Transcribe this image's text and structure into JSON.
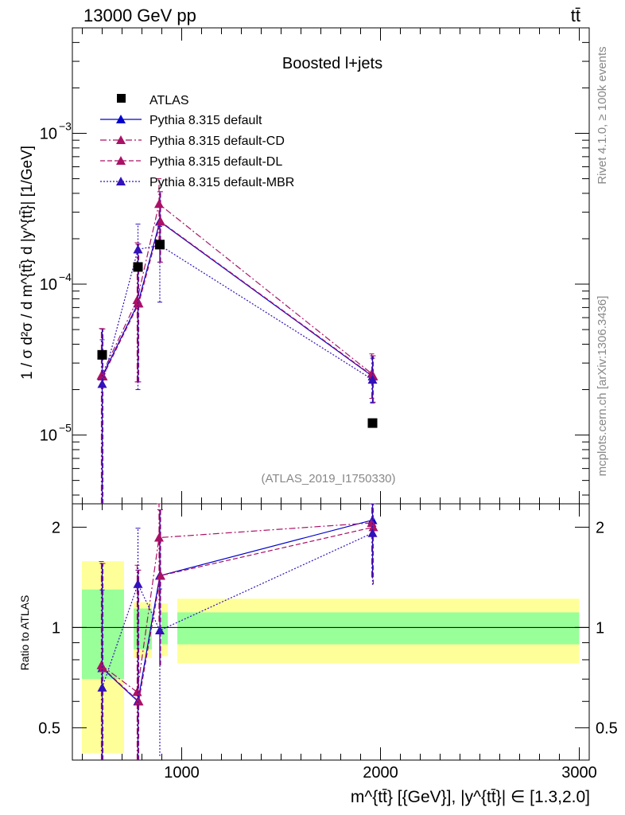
{
  "header": {
    "energy_label": "13000 GeV pp",
    "process_label": "tt̄"
  },
  "side_labels": {
    "rivet": "Rivet 4.1.0, ≥ 100k events",
    "source": "mcplots.cern.ch [arXiv:1306.3436]"
  },
  "chart_data": {
    "type": "line",
    "title": "Boosted l+jets",
    "analysis_id": "(ATLAS_2019_I1750330)",
    "xlabel": "m^{tt̄} [{GeV}], |y^{tt̄}| ∈ [1.3,2.0]",
    "ylabel": "1 / σ d²σ / d m^{tt̄} d |y^{tt̄}| [1/GeV]",
    "ratio_ylabel": "Ratio to ATLAS",
    "xlim": [
      450,
      3050
    ],
    "ylim": [
      3.5e-06,
      0.005
    ],
    "ratio_ylim": [
      0.4,
      2.35
    ],
    "x_ticks": [
      1000,
      2000,
      3000
    ],
    "y_ticks": [
      0.001,
      0.0001,
      1e-05
    ],
    "ratio_ticks": [
      0.5,
      1,
      2
    ],
    "bins": [
      [
        450,
        710
      ],
      [
        710,
        850
      ],
      [
        850,
        930
      ],
      [
        930,
        3000
      ]
    ],
    "x": [
      600,
      780,
      890,
      1960
    ],
    "data": {
      "name": "ATLAS",
      "values": [
        3.4e-05,
        0.00013,
        0.000183,
        1.2e-05
      ],
      "stat_band": [
        0.3,
        0.14,
        0.11,
        0.11
      ],
      "total_band": [
        0.58,
        0.19,
        0.18,
        0.22
      ]
    },
    "series": [
      {
        "name": "Pythia 8.315 default",
        "color": "#0000cc",
        "dash": "",
        "values": [
          2.45e-05,
          7.45e-05,
          0.00026,
          2.45e-05
        ],
        "err_low": [
          2.45e-05,
          5.2e-05,
          0.00012,
          8e-06
        ],
        "err_high": [
          2.6e-05,
          0.00011,
          0.00015,
          9e-06
        ],
        "ratio": [
          0.755,
          0.6,
          1.43,
          2.1
        ]
      },
      {
        "name": "Pythia 8.315 default-CD",
        "color": "#aa1166",
        "dash": "8,3,2,3",
        "values": [
          2.48e-05,
          7.85e-05,
          0.00034,
          2.55e-05
        ],
        "err_low": [
          2.48e-05,
          5.6e-05,
          0.00015,
          8e-06
        ],
        "err_high": [
          2.6e-05,
          0.00011,
          0.00016,
          9e-06
        ],
        "ratio": [
          0.77,
          0.64,
          1.86,
          2.06
        ]
      },
      {
        "name": "Pythia 8.315 default-DL",
        "color": "#aa1166",
        "dash": "6,3",
        "values": [
          2.45e-05,
          7.45e-05,
          0.00026,
          2.45e-05
        ],
        "err_low": [
          2.45e-05,
          5.2e-05,
          0.00012,
          8e-06
        ],
        "err_high": [
          2.6e-05,
          0.00011,
          0.00015,
          9e-06
        ],
        "ratio": [
          0.755,
          0.6,
          1.43,
          2.0
        ]
      },
      {
        "name": "Pythia 8.315 default-MBR",
        "color": "#3311bb",
        "dash": "2,2",
        "values": [
          2.18e-05,
          0.00017,
          0.000181,
          2.33e-05
        ],
        "err_low": [
          2.18e-05,
          0.00015,
          0.000105,
          7e-06
        ],
        "err_high": [
          2.1e-05,
          8e-05,
          6e-05,
          9e-06
        ],
        "ratio": [
          0.66,
          1.35,
          0.98,
          1.92
        ]
      }
    ]
  }
}
